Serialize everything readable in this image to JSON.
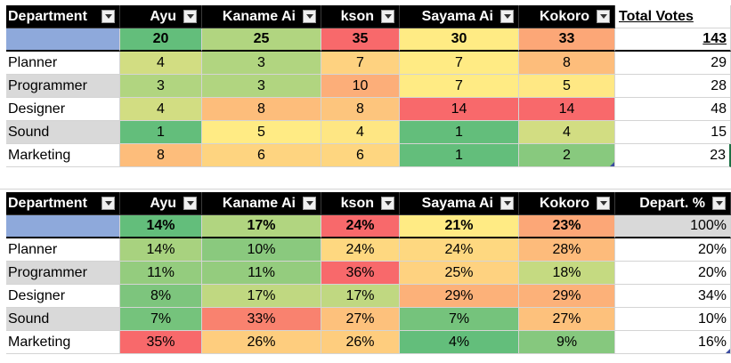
{
  "colors": {
    "header_bg": "#000000",
    "total_label_bg": "#8ea9db",
    "alt_row_bg": "#d9d9d9",
    "scale_green": "#63be7b",
    "scale_yellow": "#ffeb84",
    "scale_red": "#f8696b"
  },
  "table1": {
    "headers": [
      "Department",
      "Ayu",
      "Kaname Ai",
      "kson",
      "Sayama Ai",
      "Kokoro",
      "Total Votes"
    ],
    "totals": [
      "",
      "20",
      "25",
      "35",
      "30",
      "33",
      "143"
    ],
    "rows": [
      {
        "dept": "Planner",
        "values": [
          "4",
          "3",
          "7",
          "7",
          "8"
        ],
        "total": "29"
      },
      {
        "dept": "Programmer",
        "values": [
          "3",
          "3",
          "10",
          "7",
          "5"
        ],
        "total": "28"
      },
      {
        "dept": "Designer",
        "values": [
          "4",
          "8",
          "8",
          "14",
          "14"
        ],
        "total": "48"
      },
      {
        "dept": "Sound",
        "values": [
          "1",
          "5",
          "4",
          "1",
          "4"
        ],
        "total": "15"
      },
      {
        "dept": "Marketing",
        "values": [
          "8",
          "6",
          "6",
          "1",
          "2"
        ],
        "total": "23"
      }
    ]
  },
  "table2": {
    "headers": [
      "Department",
      "Ayu",
      "Kaname Ai",
      "kson",
      "Sayama Ai",
      "Kokoro",
      "Depart. %"
    ],
    "totals": [
      "",
      "14%",
      "17%",
      "24%",
      "21%",
      "23%",
      "100%"
    ],
    "rows": [
      {
        "dept": "Planner",
        "values": [
          "14%",
          "10%",
          "24%",
          "24%",
          "28%"
        ],
        "total": "20%"
      },
      {
        "dept": "Programmer",
        "values": [
          "11%",
          "11%",
          "36%",
          "25%",
          "18%"
        ],
        "total": "20%"
      },
      {
        "dept": "Designer",
        "values": [
          "8%",
          "17%",
          "17%",
          "29%",
          "29%"
        ],
        "total": "34%"
      },
      {
        "dept": "Sound",
        "values": [
          "7%",
          "33%",
          "27%",
          "7%",
          "27%"
        ],
        "total": "10%"
      },
      {
        "dept": "Marketing",
        "values": [
          "35%",
          "26%",
          "26%",
          "4%",
          "9%"
        ],
        "total": "16%"
      }
    ]
  }
}
